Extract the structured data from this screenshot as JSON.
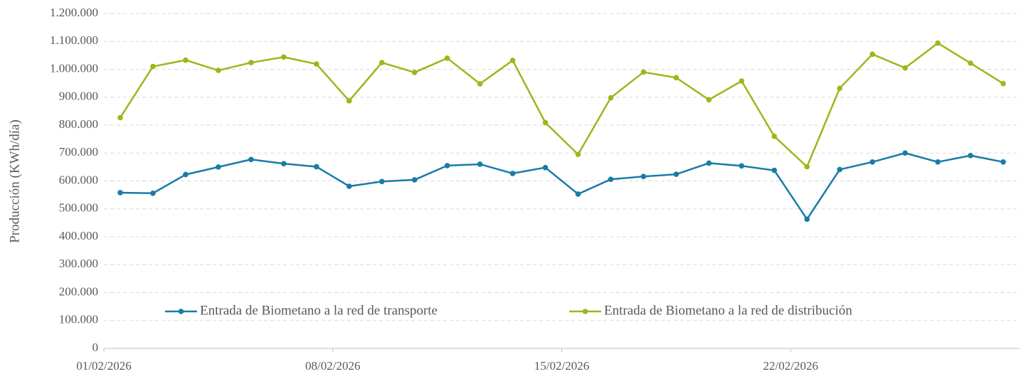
{
  "chart_data": {
    "type": "line",
    "y_label": "Producción (KWh/día)",
    "categories": [
      "01/02/2026",
      null,
      null,
      null,
      null,
      null,
      null,
      "08/02/2026",
      null,
      null,
      null,
      null,
      null,
      null,
      "15/02/2026",
      null,
      null,
      null,
      null,
      null,
      null,
      "22/02/2026",
      null,
      null,
      null,
      null,
      null,
      null
    ],
    "series": [
      {
        "name": "Entrada de Biometano a la red de transporte",
        "color": "#1a7ba6",
        "values": [
          558000,
          556000,
          623000,
          650000,
          677000,
          662000,
          651000,
          581000,
          598000,
          604000,
          655000,
          660000,
          627000,
          648000,
          553000,
          606000,
          616000,
          624000,
          664000,
          654000,
          638000,
          463000,
          641000,
          668000,
          700000,
          668000,
          691000,
          668000
        ]
      },
      {
        "name": "Entrada de Biometano a la red de distribución",
        "color": "#9cb71b",
        "values": [
          827000,
          1010000,
          1033000,
          996000,
          1024000,
          1044000,
          1019000,
          887000,
          1024000,
          989000,
          1040000,
          948000,
          1032000,
          809000,
          695000,
          898000,
          990000,
          970000,
          891000,
          958000,
          760000,
          651000,
          932000,
          1054000,
          1005000,
          1094000,
          1022000,
          949000
        ]
      }
    ],
    "ylim": [
      0,
      1200000
    ],
    "yticks": [
      0,
      {
        "value": 100000,
        "label": "100.000"
      },
      {
        "value": 200000,
        "label": "200.000"
      },
      {
        "value": 300000,
        "label": "300.000"
      },
      {
        "value": 400000,
        "label": "400.000"
      },
      {
        "value": 500000,
        "label": "500.000"
      },
      {
        "value": 600000,
        "label": "600.000"
      },
      {
        "value": 700000,
        "label": "700.000"
      },
      {
        "value": 800000,
        "label": "800.000"
      },
      {
        "value": 900000,
        "label": "900.000"
      },
      {
        "value": 1000000,
        "label": "1.000.000"
      },
      {
        "value": 1100000,
        "label": "1.100.000"
      },
      {
        "value": 1200000,
        "label": "1.200.000"
      }
    ],
    "grid": true,
    "legend": "bottom"
  }
}
